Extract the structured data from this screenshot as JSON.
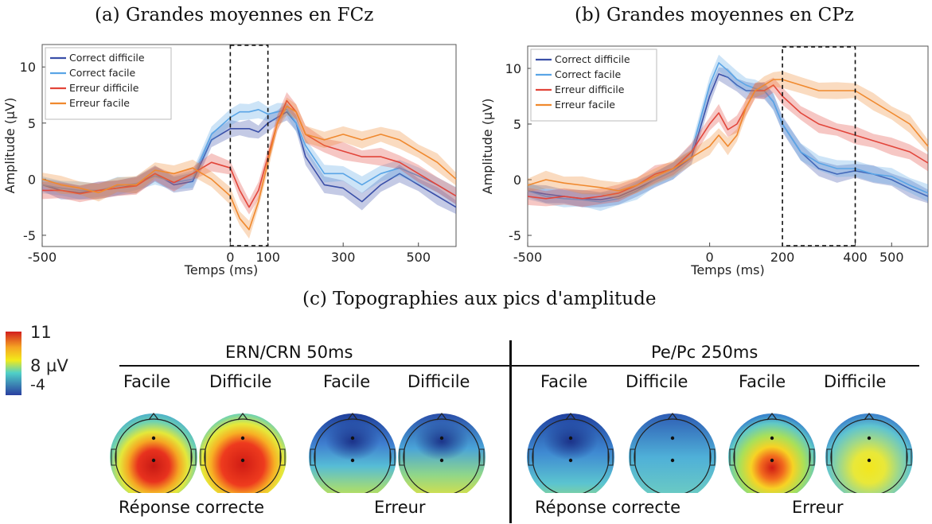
{
  "chart_data": [
    {
      "type": "line",
      "title": "(a) Grandes moyennes en FCz",
      "xlabel": "Temps (ms)",
      "ylabel": "Amplitude (µV)",
      "xlim": [
        -500,
        600
      ],
      "ylim": [
        -6,
        12
      ],
      "xticks": [
        "-500",
        "0",
        "100",
        "300",
        "500"
      ],
      "xtick_values": [
        -500,
        0,
        100,
        300,
        500
      ],
      "yticks": [
        "-5",
        "0",
        "5",
        "10"
      ],
      "ytick_values": [
        -5,
        0,
        5,
        10
      ],
      "highlight_window": [
        0,
        100
      ],
      "legend_position": "top-left",
      "grid": false,
      "x": [
        -500,
        -450,
        -400,
        -350,
        -300,
        -250,
        -200,
        -150,
        -100,
        -50,
        0,
        25,
        50,
        75,
        100,
        125,
        150,
        175,
        200,
        250,
        300,
        350,
        400,
        450,
        500,
        550,
        600
      ],
      "series": [
        {
          "name": "Correct difficile",
          "color": "#3a4fa8",
          "values": [
            -0.5,
            -1,
            -1.2,
            -1,
            -0.8,
            -0.5,
            0.5,
            -0.5,
            -0.2,
            3.5,
            4.5,
            4.5,
            4.5,
            4.2,
            5,
            5.5,
            6,
            5,
            2,
            -0.5,
            -0.8,
            -2,
            -0.5,
            0.5,
            -0.5,
            -1.5,
            -2.5
          ]
        },
        {
          "name": "Correct facile",
          "color": "#5aa5e6",
          "values": [
            -0.5,
            -0.8,
            -1,
            -1,
            -0.6,
            -0.4,
            0.3,
            -0.3,
            0,
            4,
            5.5,
            6,
            6,
            6.2,
            5.8,
            6,
            6.2,
            5,
            3,
            0.5,
            0.5,
            -0.5,
            0.5,
            1,
            0.3,
            -0.5,
            -1.5
          ]
        },
        {
          "name": "Erreur difficile",
          "color": "#e2453a",
          "values": [
            -1,
            -1,
            -1.3,
            -1,
            -0.8,
            -0.6,
            0.5,
            -0.3,
            0.5,
            1.5,
            1,
            -1,
            -2.5,
            -1,
            2,
            5,
            7,
            6,
            4,
            3,
            2.5,
            2,
            2,
            1.5,
            0.5,
            -0.5,
            -1.5
          ]
        },
        {
          "name": "Erreur facile",
          "color": "#f0892e",
          "values": [
            0,
            -0.5,
            -0.8,
            -1.2,
            -0.5,
            -0.5,
            0.8,
            0.5,
            1,
            0,
            -1.5,
            -3.5,
            -4.5,
            -2,
            1.5,
            5,
            6.5,
            6,
            4,
            3.5,
            4,
            3.5,
            4,
            3.5,
            2.5,
            1.5,
            0
          ]
        }
      ]
    },
    {
      "type": "line",
      "title": "(b) Grandes moyennes en CPz",
      "xlabel": "Temps (ms)",
      "ylabel": "Amplitude (µV)",
      "xlim": [
        -500,
        600
      ],
      "ylim": [
        -6,
        12
      ],
      "xticks": [
        "-500",
        "0",
        "200",
        "400",
        "500"
      ],
      "xtick_values": [
        -500,
        0,
        200,
        400,
        500
      ],
      "yticks": [
        "-5",
        "0",
        "5",
        "10"
      ],
      "ytick_values": [
        -5,
        0,
        5,
        10
      ],
      "highlight_window": [
        200,
        400
      ],
      "legend_position": "top-left",
      "grid": false,
      "x": [
        -500,
        -450,
        -400,
        -350,
        -300,
        -250,
        -200,
        -150,
        -100,
        -50,
        0,
        25,
        50,
        75,
        100,
        125,
        150,
        175,
        200,
        250,
        300,
        350,
        400,
        450,
        500,
        550,
        600
      ],
      "series": [
        {
          "name": "Correct difficile",
          "color": "#3a4fa8",
          "values": [
            -1,
            -1.3,
            -1.5,
            -1.7,
            -1.8,
            -1.5,
            -0.8,
            0,
            0.8,
            2,
            7.5,
            9.5,
            9.2,
            8.5,
            8,
            8,
            8,
            7,
            5,
            2.5,
            1,
            0.5,
            0.8,
            0.5,
            0,
            -0.8,
            -1.5
          ]
        },
        {
          "name": "Correct facile",
          "color": "#5aa5e6",
          "values": [
            -1,
            -1.5,
            -1.7,
            -1.8,
            -2,
            -1.7,
            -1,
            0,
            0.8,
            2.5,
            8.5,
            10.5,
            9.8,
            9,
            8.5,
            8.2,
            8,
            7,
            5,
            2.5,
            1.5,
            1,
            1,
            0.5,
            0.3,
            -0.5,
            -1.2
          ]
        },
        {
          "name": "Erreur difficile",
          "color": "#e2453a",
          "values": [
            -1.5,
            -1.7,
            -1.5,
            -1.7,
            -1.5,
            -1.2,
            -0.5,
            0.5,
            1,
            2.5,
            5,
            6,
            4.5,
            5,
            6.5,
            8,
            8,
            8.5,
            7.5,
            6,
            5,
            4.5,
            4,
            3.5,
            3,
            2.5,
            1.5
          ]
        },
        {
          "name": "Erreur facile",
          "color": "#f0892e",
          "values": [
            -0.5,
            0,
            -0.3,
            -0.5,
            -0.7,
            -1,
            -0.5,
            0.3,
            1,
            2,
            3,
            4,
            3,
            4,
            6.5,
            8,
            8.5,
            9,
            9,
            8.5,
            8,
            8,
            8,
            7,
            6,
            5,
            3
          ]
        }
      ]
    }
  ],
  "topo": {
    "title": "(c) Topographies aux pics d'amplitude",
    "colorbar": {
      "max": "11",
      "mid": "8 µV",
      "min": "-4"
    },
    "group_left": "ERN/CRN  50ms",
    "group_right": "Pe/Pc  250ms",
    "labels": [
      "Facile",
      "Difficile",
      "Facile",
      "Difficile",
      "Facile",
      "Difficile",
      "Facile",
      "Difficile"
    ],
    "bottom": [
      "Réponse correcte",
      "Erreur",
      "Réponse correcte",
      "Erreur"
    ]
  }
}
